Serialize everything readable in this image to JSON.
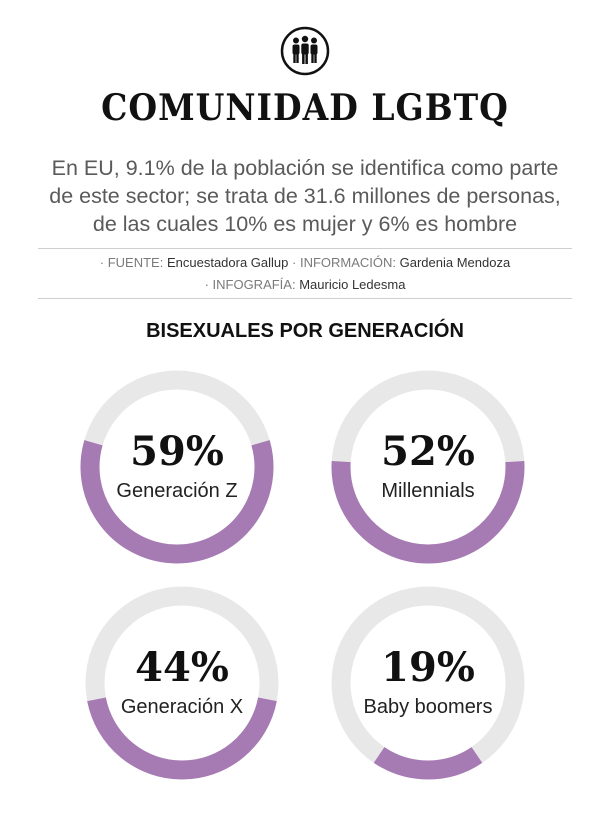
{
  "header": {
    "icon": "people-group-icon",
    "title": "COMUNIDAD LGBTQ",
    "subtitle_lines": [
      "En EU, 9.1% de la población se identifica como parte",
      "de este sector; se trata de 31.6 millones de personas,",
      "de las cuales 10% es mujer y 6% es hombre"
    ]
  },
  "credits": {
    "fuente_label": "· FUENTE:",
    "fuente_value": "Encuestadora Gallup",
    "info_label": "· INFORMACIÓN:",
    "info_value": "Gardenia Mendoza",
    "info_grafia_label": "· INFOGRAFÍA:",
    "info_grafia_value": "Mauricio Ledesma"
  },
  "chart_data": {
    "type": "pie",
    "title": "BISEXUALES POR GENERACIÓN",
    "categories": [
      "Generación Z",
      "Millennials",
      "Generación X",
      "Baby boomers"
    ],
    "values": [
      59,
      52,
      44,
      19
    ],
    "value_labels": [
      "59%",
      "52%",
      "44%",
      "19%"
    ],
    "colors": {
      "fill": "#a67ab3",
      "track": "#e8e8e8"
    }
  }
}
